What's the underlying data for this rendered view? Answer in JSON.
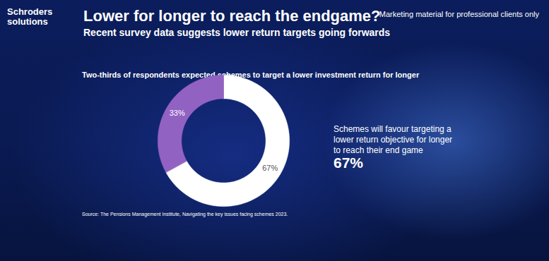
{
  "header": {
    "brand": [
      "Schroders",
      "solutions"
    ],
    "notice": "Marketing material for professional clients only",
    "title": "Lower for longer to reach the endgame?",
    "subtitle": "Recent survey data suggests lower return targets going forwards"
  },
  "chart_data": {
    "type": "donut",
    "title": "Two-thirds of respondents expected schemes to target a lower investment return for longer",
    "values": [
      67,
      33
    ],
    "value_labels": [
      "67%",
      "33%"
    ],
    "colors": [
      "#ffffff",
      "#9262c3"
    ],
    "data_labels": true,
    "annotations": [
      {
        "text": "Schemes will favour targeting a lower return objective for longer to reach their end game",
        "value_label": "67%"
      }
    ],
    "source": "Source: The Pensions Management Institute, Navigating the key issues facing schemes 2023."
  }
}
